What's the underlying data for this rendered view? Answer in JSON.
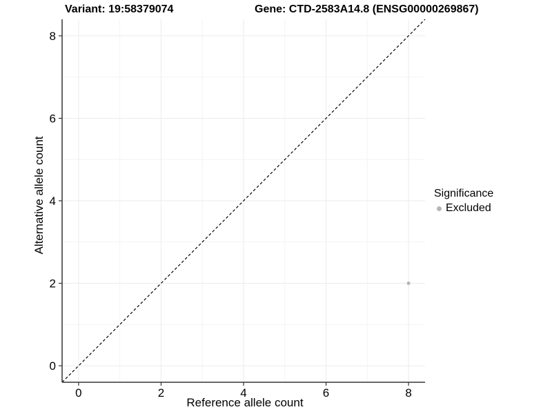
{
  "chart_data": {
    "type": "scatter",
    "title_left": "Variant: 19:58379074",
    "title_right": "Gene: CTD-2583A14.8 (ENSG00000269867)",
    "xlabel": "Reference allele count",
    "ylabel": "Alternative allele count",
    "xlim": [
      -0.4,
      8.4
    ],
    "ylim": [
      -0.4,
      8.4
    ],
    "x_ticks": [
      0,
      2,
      4,
      6,
      8
    ],
    "y_ticks": [
      0,
      2,
      4,
      6,
      8
    ],
    "minor_ticks": [
      1,
      3,
      5,
      7
    ],
    "grid": "major-and-minor",
    "legend": {
      "title": "Significance",
      "position": "right",
      "entries": [
        {
          "label": "Excluded",
          "color": "#b5b5b5"
        }
      ]
    },
    "series": [
      {
        "name": "Excluded",
        "color": "#b5b5b5",
        "marker_radius": 2.5,
        "points": [
          {
            "x": 8,
            "y": 2
          }
        ]
      }
    ],
    "reference_line": {
      "type": "identity",
      "style": "dashed",
      "color": "#000000"
    },
    "colors": {
      "grid_major": "#ebebeb",
      "grid_minor": "#f4f4f4",
      "axis_line": "#333333",
      "text": "#000000"
    }
  }
}
